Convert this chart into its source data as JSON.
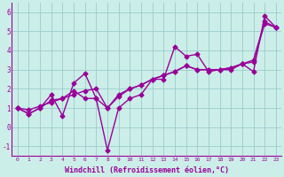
{
  "background_color": "#cceee8",
  "grid_color": "#99cccc",
  "line_color": "#990099",
  "marker": "D",
  "markersize": 2.5,
  "linewidth": 1.0,
  "xlabel": "Windchill (Refroidissement éolien,°C)",
  "xlabel_color": "#990099",
  "xlim": [
    -0.5,
    23.5
  ],
  "ylim": [
    -1.5,
    6.5
  ],
  "yticks": [
    -1,
    0,
    1,
    2,
    3,
    4,
    5,
    6
  ],
  "xticks": [
    0,
    1,
    2,
    3,
    4,
    5,
    6,
    7,
    8,
    9,
    10,
    11,
    12,
    13,
    14,
    15,
    16,
    17,
    18,
    19,
    20,
    21,
    22,
    23
  ],
  "series": [
    [
      1.0,
      0.7,
      1.0,
      1.7,
      0.6,
      2.3,
      2.8,
      1.5,
      -1.2,
      1.0,
      1.5,
      1.7,
      2.5,
      2.5,
      4.2,
      3.7,
      3.8,
      2.9,
      3.0,
      3.0,
      3.3,
      2.9,
      5.8,
      5.2
    ],
    [
      1.0,
      0.7,
      1.0,
      1.4,
      1.5,
      1.9,
      1.5,
      1.5,
      1.0,
      1.6,
      2.0,
      2.2,
      2.5,
      2.7,
      2.9,
      3.2,
      3.0,
      3.0,
      3.0,
      3.1,
      3.3,
      3.4,
      5.4,
      5.2
    ],
    [
      1.0,
      0.9,
      1.1,
      1.3,
      1.5,
      1.7,
      1.9,
      2.0,
      1.0,
      1.7,
      2.0,
      2.2,
      2.5,
      2.7,
      2.9,
      3.2,
      3.0,
      3.0,
      3.0,
      3.1,
      3.3,
      3.5,
      5.5,
      5.2
    ]
  ]
}
